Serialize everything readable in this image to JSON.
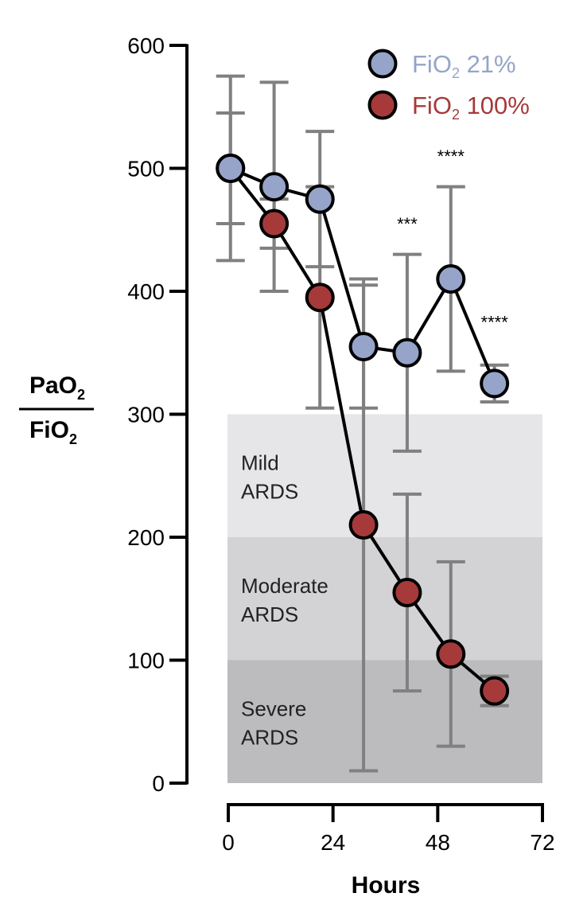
{
  "chart_data": {
    "type": "line",
    "xlabel": "Hours",
    "ylabel_numerator": "PaO",
    "ylabel_numerator_sub": "2",
    "ylabel_denominator": "FiO",
    "ylabel_denominator_sub": "2",
    "xlim": [
      0,
      72
    ],
    "ylim": [
      0,
      600
    ],
    "xticks": [
      {
        "value": 0,
        "label": "0"
      },
      {
        "value": 24,
        "label": "24"
      },
      {
        "value": 48,
        "label": "48"
      },
      {
        "value": 72,
        "label": "72"
      }
    ],
    "yticks": [
      {
        "value": 0,
        "label": "0"
      },
      {
        "value": 100,
        "label": "100"
      },
      {
        "value": 200,
        "label": "200"
      },
      {
        "value": 300,
        "label": "300"
      },
      {
        "value": 400,
        "label": "400"
      },
      {
        "value": 500,
        "label": "500"
      },
      {
        "value": 600,
        "label": "600"
      }
    ],
    "bands": [
      {
        "y0": 200,
        "y1": 300,
        "line1": "Mild",
        "line2": "ARDS",
        "color": "#e6e6e8"
      },
      {
        "y0": 100,
        "y1": 200,
        "line1": "Moderate",
        "line2": "ARDS",
        "color": "#d3d3d5"
      },
      {
        "y0": 0,
        "y1": 100,
        "line1": "Severe",
        "line2": "ARDS",
        "color": "#bcbcbe"
      }
    ],
    "series": [
      {
        "name_main": "FiO",
        "name_sub": "2",
        "name_tail": " 21%",
        "color": "#97a4c9",
        "label_color": "#97a4c9",
        "points": [
          {
            "x": 0.5,
            "y": 500,
            "lo": 455,
            "hi": 545
          },
          {
            "x": 10.5,
            "y": 485,
            "lo": 400,
            "hi": 570
          },
          {
            "x": 21,
            "y": 475,
            "lo": 420,
            "hi": 530
          },
          {
            "x": 31,
            "y": 355,
            "lo": 305,
            "hi": 405
          },
          {
            "x": 41,
            "y": 350,
            "lo": 270,
            "hi": 430
          },
          {
            "x": 51,
            "y": 410,
            "lo": 335,
            "hi": 485
          },
          {
            "x": 61,
            "y": 325,
            "lo": 310,
            "hi": 340
          }
        ]
      },
      {
        "name_main": "FiO",
        "name_sub": "2",
        "name_tail": " 100%",
        "color": "#a63a3a",
        "label_color": "#a63a3a",
        "points": [
          {
            "x": 0.5,
            "y": 500,
            "lo": 425,
            "hi": 575
          },
          {
            "x": 10.5,
            "y": 455,
            "lo": 435,
            "hi": 475
          },
          {
            "x": 21,
            "y": 395,
            "lo": 305,
            "hi": 485
          },
          {
            "x": 31,
            "y": 210,
            "lo": 10,
            "hi": 410
          },
          {
            "x": 41,
            "y": 155,
            "lo": 75,
            "hi": 235
          },
          {
            "x": 51,
            "y": 105,
            "lo": 30,
            "hi": 180
          },
          {
            "x": 61,
            "y": 75,
            "lo": 63,
            "hi": 87
          }
        ]
      }
    ],
    "annotations": [
      {
        "x": 41,
        "y": 450,
        "text": "***"
      },
      {
        "x": 51,
        "y": 505,
        "text": "****"
      },
      {
        "x": 61,
        "y": 370,
        "text": "****"
      }
    ],
    "colors": {
      "axis": "#000000",
      "errorbar": "#808080",
      "line": "#000000"
    }
  }
}
